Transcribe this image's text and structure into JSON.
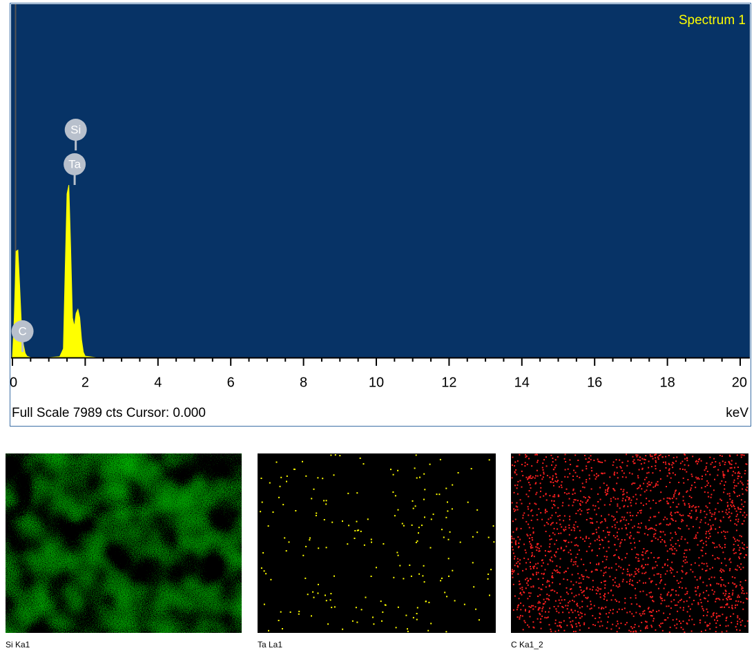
{
  "chart_data": {
    "type": "area",
    "title": "Spectrum 1",
    "x": [
      0,
      0.05,
      0.1,
      0.15,
      0.2,
      0.25,
      0.3,
      0.35,
      0.4,
      0.5,
      1.0,
      1.3,
      1.4,
      1.45,
      1.5,
      1.55,
      1.6,
      1.65,
      1.7,
      1.75,
      1.8,
      1.85,
      1.9,
      1.95,
      2.0,
      2.3,
      5.0,
      20
    ],
    "values": [
      0,
      900,
      2400,
      2430,
      1600,
      700,
      300,
      100,
      30,
      0,
      0,
      20,
      200,
      2000,
      3700,
      3900,
      2500,
      900,
      700,
      1000,
      1090,
      900,
      400,
      120,
      30,
      0,
      0,
      0
    ],
    "color": "#ffff00",
    "background": "#073366",
    "xlim": [
      0,
      20
    ],
    "xticks": [
      0,
      2,
      4,
      6,
      8,
      10,
      12,
      14,
      16,
      18,
      20
    ],
    "xminorticks": [
      0.5,
      1,
      1.5,
      2.5,
      3,
      3.5,
      4.5,
      5,
      5.5,
      6.5,
      7,
      7.5,
      8.5,
      9,
      9.5,
      10.5,
      11,
      11.5,
      12.5,
      13,
      13.5,
      14.5,
      15,
      15.5,
      16.5,
      17,
      17.5,
      18.5,
      19,
      19.5
    ],
    "ylim": [
      0,
      7989
    ],
    "x_unit": "keV",
    "status": "Full Scale 7989 cts Cursor: 0.000",
    "peak_labels": [
      {
        "label": "Si",
        "x": 1.74
      },
      {
        "label": "Ta",
        "x": 1.71
      },
      {
        "label": "C",
        "x": 0.277
      }
    ]
  },
  "maps": [
    {
      "label": "Si Ka1",
      "color": "#2fa52f"
    },
    {
      "label": "Ta La1",
      "color": "#ffff00"
    },
    {
      "label": "C Ka1_2",
      "color": "#ff2020"
    }
  ]
}
